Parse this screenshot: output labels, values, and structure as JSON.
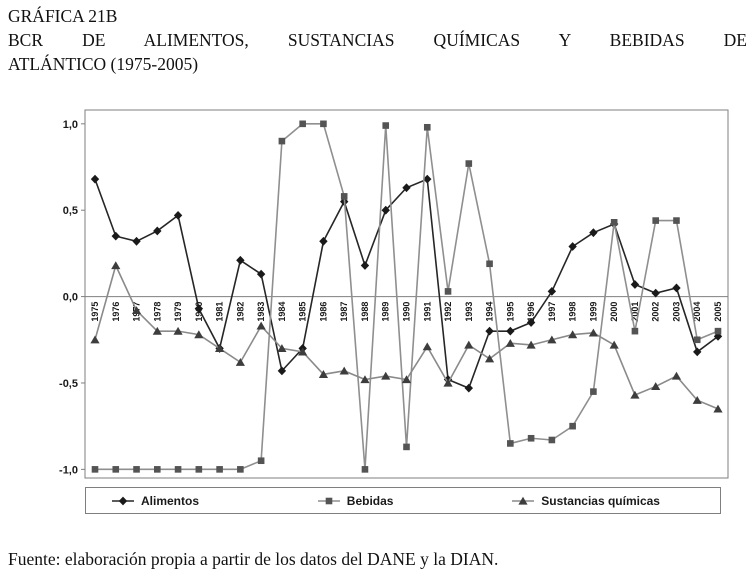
{
  "document": {
    "title_line1": "GRÁFICA 21B",
    "title_line2": "BCR DE ALIMENTOS, SUSTANCIAS QUÍMICAS Y BEBIDAS DE",
    "title_line3": "ATLÁNTICO (1975-2005)",
    "source": "Fuente: elaboración propia a partir de los datos del DANE y la DIAN."
  },
  "chart_data": {
    "type": "line",
    "title": "BCR de alimentos, sustancias químicas y bebidas de Atlántico (1975-2005)",
    "x": [
      "1975",
      "1976",
      "1977",
      "1978",
      "1979",
      "1980",
      "1981",
      "1982",
      "1983",
      "1984",
      "1985",
      "1986",
      "1987",
      "1988",
      "1989",
      "1990",
      "1991",
      "1992",
      "1993",
      "1994",
      "1995",
      "1996",
      "1997",
      "1998",
      "1999",
      "2000",
      "2001",
      "2002",
      "2003",
      "2004",
      "2005"
    ],
    "series": [
      {
        "name": "Alimentos",
        "marker": "diamond",
        "line_color": "#262626",
        "marker_color": "#1a1a1a",
        "values": [
          0.68,
          0.35,
          0.32,
          0.38,
          0.47,
          -0.07,
          -0.3,
          0.21,
          0.13,
          -0.43,
          -0.3,
          0.32,
          0.55,
          0.18,
          0.5,
          0.63,
          0.68,
          -0.48,
          -0.53,
          -0.2,
          -0.2,
          -0.15,
          0.03,
          0.29,
          0.37,
          0.42,
          0.07,
          0.02,
          0.05,
          -0.32,
          -0.23
        ]
      },
      {
        "name": "Bebidas",
        "marker": "square",
        "line_color": "#8f8f8f",
        "marker_color": "#545454",
        "values": [
          -1.0,
          -1.0,
          -1.0,
          -1.0,
          -1.0,
          -1.0,
          -1.0,
          -1.0,
          -0.95,
          0.9,
          1.0,
          1.0,
          0.58,
          -1.0,
          0.99,
          -0.87,
          0.98,
          0.03,
          0.77,
          0.19,
          -0.85,
          -0.82,
          -0.83,
          -0.75,
          -0.55,
          0.43,
          -0.2,
          0.44,
          0.44,
          -0.25,
          -0.2
        ]
      },
      {
        "name": "Sustancias químicas",
        "marker": "triangle",
        "line_color": "#8a8a8a",
        "marker_color": "#3d3d3d",
        "values": [
          -0.25,
          0.18,
          -0.08,
          -0.2,
          -0.2,
          -0.22,
          -0.3,
          -0.38,
          -0.17,
          -0.3,
          -0.32,
          -0.45,
          -0.43,
          -0.48,
          -0.46,
          -0.48,
          -0.29,
          -0.5,
          -0.28,
          -0.36,
          -0.27,
          -0.28,
          -0.25,
          -0.22,
          -0.21,
          -0.28,
          -0.57,
          -0.52,
          -0.46,
          -0.6,
          -0.65
        ]
      }
    ],
    "y_ticks": [
      "1,0",
      "0,5",
      "0,0",
      "-0,5",
      "-1,0"
    ],
    "y_tick_values": [
      1.0,
      0.5,
      0.0,
      -0.5,
      -1.0
    ],
    "ylim": [
      -1.05,
      1.08
    ],
    "grid": false,
    "legend_position": "bottom",
    "axis_color": "#7f7f7f"
  }
}
